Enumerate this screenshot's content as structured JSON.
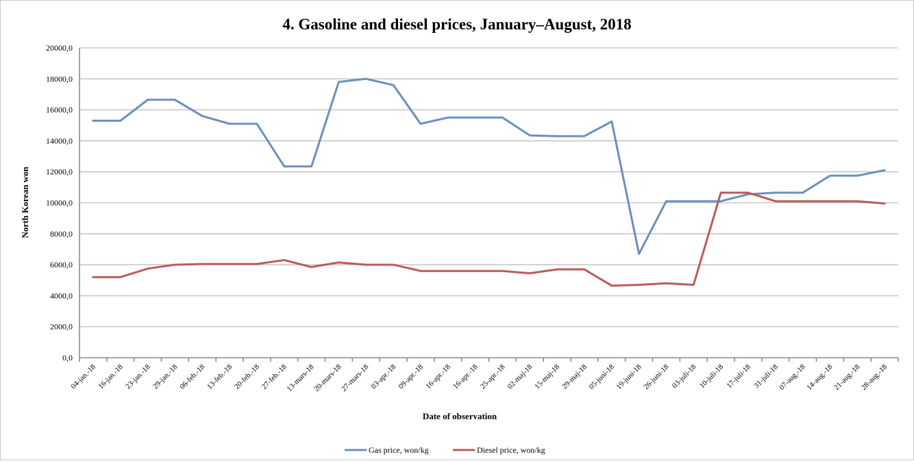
{
  "chart_data": {
    "type": "line",
    "title": "4. Gasoline and diesel prices, January–August, 2018",
    "xlabel": "Date of observation",
    "ylabel": "North Korean won",
    "ylim": [
      0,
      20000
    ],
    "y_ticks": [
      "0,0",
      "2000,0",
      "4000,0",
      "6000,0",
      "8000,0",
      "10000,0",
      "12000,0",
      "14000,0",
      "16000,0",
      "18000,0",
      "20000,0"
    ],
    "categories": [
      "04-jan.-18",
      "16-jan.-18",
      "23-jan.-18",
      "29-jan.-18",
      "06-feb.-18",
      "13-feb.-18",
      "20-feb.-18",
      "27-feb.-18",
      "13-mars-18",
      "20-mars-18",
      "27-mars-18",
      "03-apr.-18",
      "09-apr.-18",
      "16-apr.-18",
      "16-apr.-18",
      "25-apr.-18",
      "02-maj-18",
      "15-maj-18",
      "29-maj-18",
      "05-juni-18",
      "19-juni-18",
      "26-juni-18",
      "03-juli-18",
      "10-juli-18",
      "17-juli-18",
      "31-juli-18",
      "07-aug.-18",
      "14-aug.-18",
      "21-aug.-18",
      "28-aug.-18"
    ],
    "series": [
      {
        "name": "Gas price, won/kg",
        "color": "#6a8fbf",
        "values": [
          15300,
          15300,
          16650,
          16650,
          15600,
          15100,
          15100,
          12350,
          12350,
          17800,
          18000,
          17600,
          15100,
          15500,
          15500,
          15500,
          14350,
          14300,
          14300,
          15250,
          6700,
          10100,
          10100,
          10100,
          10550,
          10650,
          10650,
          11750,
          11750,
          12100
        ]
      },
      {
        "name": "Diesel price, won/kg",
        "color": "#b85c5a",
        "values": [
          5200,
          5200,
          5750,
          6000,
          6050,
          6050,
          6050,
          6300,
          5850,
          6150,
          6000,
          6000,
          5600,
          5600,
          5600,
          5600,
          5450,
          5700,
          5700,
          4650,
          4700,
          4800,
          4700,
          10650,
          10650,
          10100,
          10100,
          10100,
          10100,
          9950
        ]
      }
    ],
    "grid": true,
    "legend_position": "bottom"
  }
}
